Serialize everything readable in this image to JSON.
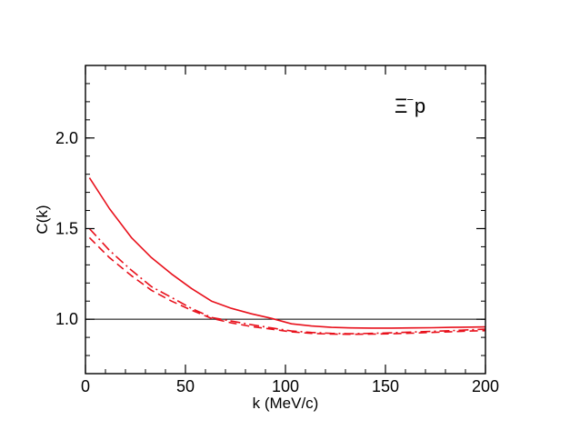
{
  "chart_data": {
    "type": "line",
    "title": "",
    "xlabel": "k (MeV/c)",
    "ylabel": "C(k)",
    "xlim": [
      0,
      200
    ],
    "ylim": [
      0.7,
      2.4
    ],
    "x_ticks": [
      0,
      50,
      100,
      150,
      200
    ],
    "x_tick_labels": [
      "0",
      "50",
      "100",
      "150",
      "200"
    ],
    "y_ticks": [
      1.0,
      1.5,
      2.0
    ],
    "y_tick_labels": [
      "1.0",
      "1.5",
      "2.0"
    ],
    "x_minor_step": 10,
    "y_minor_step": 0.1,
    "grid": false,
    "legend": "none",
    "annotation": {
      "main": "Ξ",
      "sup": "−",
      "tail": "p"
    },
    "reference_line": {
      "y": 1.0,
      "color": "#000000"
    },
    "series": [
      {
        "name": "solid",
        "style": "solid",
        "color": "#e8101b",
        "x": [
          2,
          12,
          23,
          33,
          43,
          53,
          63,
          73,
          83,
          93,
          103,
          113,
          123,
          133,
          143,
          153,
          163,
          173,
          183,
          193,
          200
        ],
        "y": [
          1.78,
          1.61,
          1.45,
          1.34,
          1.25,
          1.17,
          1.1,
          1.06,
          1.03,
          1.005,
          0.975,
          0.963,
          0.955,
          0.952,
          0.951,
          0.951,
          0.952,
          0.953,
          0.955,
          0.957,
          0.958
        ]
      },
      {
        "name": "dashed",
        "style": "dashed",
        "color": "#e8101b",
        "x": [
          2,
          12,
          23,
          33,
          43,
          53,
          63,
          73,
          83,
          93,
          103,
          113,
          123,
          133,
          143,
          153,
          163,
          173,
          183,
          193,
          200
        ],
        "y": [
          1.45,
          1.34,
          1.24,
          1.16,
          1.1,
          1.05,
          1.005,
          0.98,
          0.96,
          0.945,
          0.93,
          0.922,
          0.918,
          0.917,
          0.918,
          0.92,
          0.923,
          0.927,
          0.931,
          0.935,
          0.937
        ]
      },
      {
        "name": "dash-dot",
        "style": "dashdot",
        "color": "#e8101b",
        "x": [
          2,
          12,
          23,
          33,
          43,
          53,
          63,
          73,
          83,
          93,
          103,
          113,
          123,
          133,
          143,
          153,
          163,
          173,
          183,
          193,
          200
        ],
        "y": [
          1.5,
          1.38,
          1.27,
          1.18,
          1.12,
          1.06,
          1.01,
          0.99,
          0.97,
          0.952,
          0.935,
          0.927,
          0.922,
          0.92,
          0.922,
          0.925,
          0.929,
          0.933,
          0.937,
          0.942,
          0.945
        ]
      }
    ]
  }
}
